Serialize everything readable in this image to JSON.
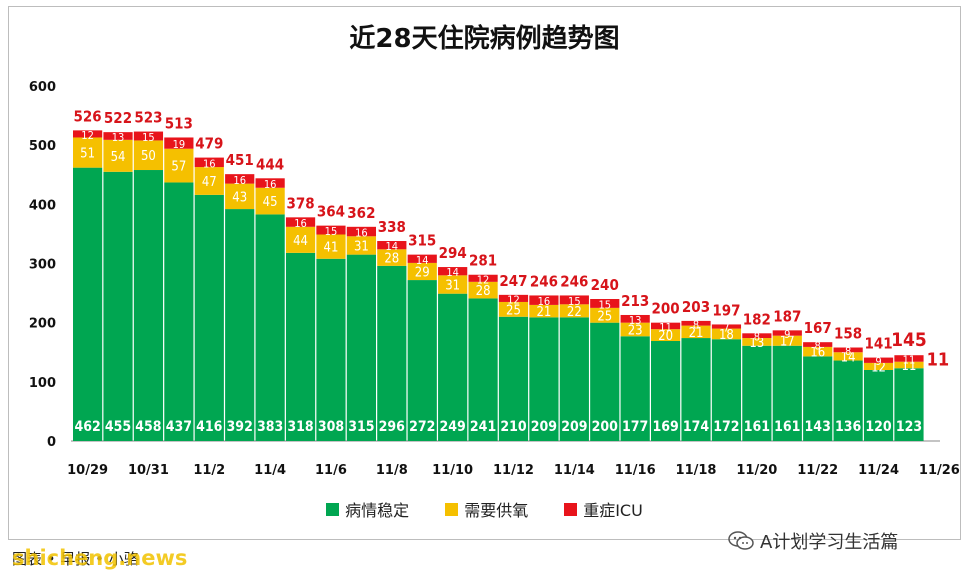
{
  "chart_data": {
    "type": "bar",
    "stacked": true,
    "title": "近28天住院病例趋势图",
    "categories": [
      "10/29",
      "10/30",
      "10/31",
      "11/1",
      "11/2",
      "11/3",
      "11/4",
      "11/5",
      "11/6",
      "11/7",
      "11/8",
      "11/9",
      "11/10",
      "11/11",
      "11/12",
      "11/13",
      "11/14",
      "11/15",
      "11/16",
      "11/17",
      "11/18",
      "11/19",
      "11/20",
      "11/21",
      "11/22",
      "11/23",
      "11/24",
      "11/25"
    ],
    "x_tick_labels": [
      "10/29",
      "10/31",
      "11/2",
      "11/4",
      "11/6",
      "11/8",
      "11/10",
      "11/12",
      "11/14",
      "11/16",
      "11/18",
      "11/20",
      "11/22",
      "11/24",
      "11/26"
    ],
    "series": [
      {
        "name": "病情稳定",
        "color": "#00a651",
        "values": [
          462,
          455,
          458,
          437,
          416,
          392,
          383,
          318,
          308,
          315,
          296,
          272,
          249,
          241,
          210,
          209,
          209,
          200,
          177,
          169,
          174,
          172,
          161,
          161,
          143,
          136,
          120,
          123
        ]
      },
      {
        "name": "需要供氧",
        "color": "#f5c000",
        "values": [
          51,
          54,
          50,
          57,
          47,
          43,
          45,
          44,
          41,
          31,
          28,
          29,
          31,
          28,
          25,
          21,
          22,
          25,
          23,
          20,
          21,
          18,
          13,
          17,
          16,
          14,
          12,
          11
        ]
      },
      {
        "name": "重症ICU",
        "color": "#e8141b",
        "values": [
          12,
          13,
          15,
          19,
          16,
          16,
          16,
          16,
          15,
          16,
          14,
          14,
          14,
          12,
          12,
          16,
          15,
          15,
          13,
          11,
          8,
          7,
          8,
          9,
          8,
          8,
          9,
          11
        ]
      }
    ],
    "totals": [
      526,
      522,
      523,
      513,
      479,
      451,
      444,
      378,
      364,
      362,
      338,
      315,
      294,
      281,
      247,
      246,
      246,
      240,
      213,
      200,
      203,
      197,
      182,
      187,
      167,
      158,
      141,
      145
    ],
    "ylim": [
      0,
      600
    ],
    "yticks": [
      0,
      100,
      200,
      300,
      400,
      500,
      600
    ],
    "grid": false,
    "legend_position": "bottom"
  },
  "legend": {
    "stable_label": "病情稳定",
    "oxygen_label": "需要供氧",
    "icu_label": "重症ICU",
    "stable_color": "#00a651",
    "oxygen_color": "#f5c000",
    "icu_color": "#e8141b"
  },
  "footer": {
    "source": "图表 • 早报 • 小骆",
    "watermark_site": "shicheng.news",
    "watermark_account": "A计划学习生活篇"
  }
}
